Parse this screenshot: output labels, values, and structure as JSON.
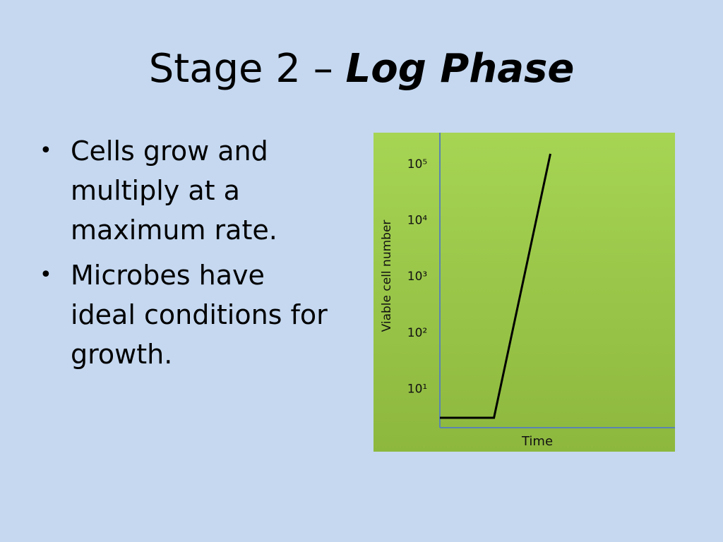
{
  "slide": {
    "title_prefix": "Stage 2 – ",
    "title_emphasis": "Log Phase",
    "bullets": [
      "Cells grow and multiply at a maximum rate.",
      "Microbes have ideal conditions for growth."
    ],
    "bullet_symbol": "•"
  },
  "colors": {
    "background": "#c5d8f0",
    "chart_bg_top": "#a6d453",
    "chart_bg_bottom": "#8db83e",
    "axis": "#5b84b1",
    "line": "#000000"
  },
  "chart_data": {
    "type": "line",
    "title": "",
    "xlabel": "Time",
    "ylabel": "Viable cell number",
    "y_scale": "log",
    "y_ticks": [
      {
        "label": "10¹",
        "value": 10
      },
      {
        "label": "10²",
        "value": 100
      },
      {
        "label": "10³",
        "value": 1000
      },
      {
        "label": "10⁴",
        "value": 10000
      },
      {
        "label": "10⁵",
        "value": 100000
      }
    ],
    "grid": false,
    "legend": "none",
    "series": [
      {
        "points": [
          {
            "x": 0,
            "y": 3
          },
          {
            "x": 0.23,
            "y": 3
          },
          {
            "x": 0.47,
            "y": 150000
          }
        ]
      }
    ],
    "xlim": [
      0,
      1
    ],
    "ylim": [
      2,
      200000
    ]
  }
}
